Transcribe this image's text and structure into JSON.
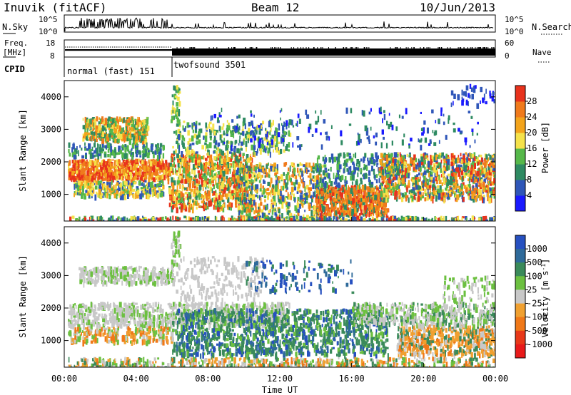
{
  "header": {
    "station": "Inuvik (fitACF)",
    "beam": "Beam 12",
    "date": "10/Jun/2013"
  },
  "top_panels": {
    "nsky_label": "N.Sky",
    "nsearch_label": "N.Search",
    "freq_label_1": "Freq.",
    "freq_label_2": "[MHz]",
    "nave_label": "Nave",
    "cpid_label": "CPID",
    "nsky_ticks": [
      "10^5",
      "10^0"
    ],
    "nsearch_ticks": [
      "10^5",
      "10^0"
    ],
    "freq_ticks": [
      "18",
      "8"
    ],
    "nave_ticks": [
      "60",
      "0"
    ],
    "cpid_segments": [
      {
        "label": "normal (fast) 151",
        "start_hour": 0,
        "end_hour": 6
      },
      {
        "label": "twofsound 3501",
        "start_hour": 6,
        "end_hour": 24
      }
    ]
  },
  "axes": {
    "xlabel": "Time UT",
    "x_ticks": [
      "00:00",
      "04:00",
      "08:00",
      "12:00",
      "16:00",
      "20:00",
      "00:00"
    ],
    "ylabel": "Slant Range [km]",
    "y_ticks": [
      "1000",
      "2000",
      "3000",
      "4000"
    ]
  },
  "power_colorbar": {
    "label": "Power [dB]",
    "ticks": [
      "4",
      "8",
      "12",
      "16",
      "20",
      "24",
      "28"
    ],
    "colors": [
      "#1a1aff",
      "#2f56b8",
      "#2e8a62",
      "#56b84a",
      "#f5e24a",
      "#f3a41c",
      "#f07a1c",
      "#e8321c"
    ]
  },
  "velocity_colorbar": {
    "label_main": "Velocity [m s",
    "label_exp": "-1",
    "label_end": "]",
    "ticks": [
      "1000",
      "500",
      "100",
      "25",
      "-25",
      "-100",
      "-500",
      "-1000"
    ],
    "colors": [
      "#2650c0",
      "#2e6a9a",
      "#3a8a5a",
      "#6cc040",
      "#c8c8c8",
      "#f0a030",
      "#f07818",
      "#e83818",
      "#e81a1a"
    ]
  },
  "chart_data": [
    {
      "type": "heatmap",
      "title": "Power",
      "x_range_hours": [
        0,
        24
      ],
      "y_range_km": [
        180,
        4500
      ],
      "colorbar_range_db": [
        0,
        30
      ],
      "bands_km": [
        {
          "time_hours": [
            0.2,
            5.8
          ],
          "range_km": [
            1500,
            2100
          ],
          "level_db": "20-28"
        },
        {
          "time_hours": [
            1.0,
            4.5
          ],
          "range_km": [
            2700,
            3400
          ],
          "level_db": "16-24"
        },
        {
          "time_hours": [
            5.8,
            10.0
          ],
          "range_km": [
            600,
            2200
          ],
          "level_db": "16-28"
        },
        {
          "time_hours": [
            14.5,
            17.5
          ],
          "range_km": [
            400,
            1200
          ],
          "level_db": "20-28"
        },
        {
          "time_hours": [
            18.0,
            24.0
          ],
          "range_km": [
            900,
            2200
          ],
          "level_db": "16-28"
        }
      ]
    },
    {
      "type": "heatmap",
      "title": "Velocity",
      "x_range_hours": [
        0,
        24
      ],
      "y_range_km": [
        180,
        4500
      ],
      "bands_km": [
        {
          "time_hours": [
            0.2,
            12.0
          ],
          "range_km": [
            1500,
            2200
          ],
          "velocity_ms": "-25 to 25"
        },
        {
          "time_hours": [
            6.0,
            18.0
          ],
          "range_km": [
            700,
            2000
          ],
          "velocity_ms": "100 to 500"
        },
        {
          "time_hours": [
            19.0,
            24.0
          ],
          "range_km": [
            700,
            1600
          ],
          "velocity_ms": "-500 to -100"
        }
      ]
    }
  ]
}
